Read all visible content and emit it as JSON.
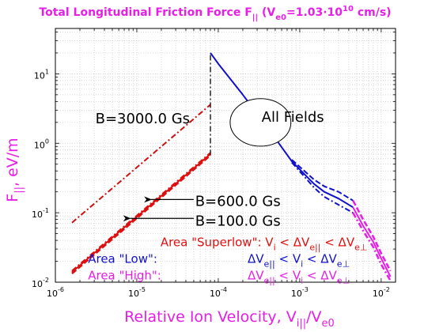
{
  "chart_data": {
    "type": "line",
    "title_main": "Total Longitudinal Friction Force F",
    "title_sub": "||",
    "title_paren": " (V",
    "title_psub": "e0",
    "title_eq": "=1.03·10",
    "title_sup": "10",
    "title_unit": " cm/s)",
    "xlabel_main": "Relative Ion Velocity, V",
    "xlabel_sub": "i||",
    "xlabel_slash": "/V",
    "xlabel_sub2": "e0",
    "ylabel_main": "F",
    "ylabel_sub": "||",
    "ylabel_unit": ", eV/m",
    "x_scale": "log",
    "y_scale": "log",
    "xlim": [
      1e-06,
      0.015
    ],
    "ylim": [
      0.01,
      45
    ],
    "grid": true,
    "x_ticks": [
      {
        "base": "10",
        "exp": "-6",
        "value": 1e-06
      },
      {
        "base": "10",
        "exp": "-5",
        "value": 1e-05
      },
      {
        "base": "10",
        "exp": "-4",
        "value": 0.0001
      },
      {
        "base": "10",
        "exp": "-3",
        "value": 0.001
      },
      {
        "base": "10",
        "exp": "-2",
        "value": 0.01
      }
    ],
    "y_ticks": [
      {
        "base": "10",
        "exp": "-2",
        "value": 0.01
      },
      {
        "base": "10",
        "exp": "-1",
        "value": 0.1
      },
      {
        "base": "10",
        "exp": "0",
        "value": 1
      },
      {
        "base": "10",
        "exp": "1",
        "value": 10
      }
    ],
    "series": [
      {
        "color": "#cc1010",
        "dash": "7,3,2,3",
        "width": 2,
        "x": [
          1.6e-06,
          8e-05
        ],
        "y": [
          0.072,
          3.6
        ]
      },
      {
        "color": "#dd1010",
        "dash": "7,3",
        "width": 2.5,
        "x": [
          1.6e-06,
          8e-05
        ],
        "y": [
          0.0133,
          0.67
        ]
      },
      {
        "color": "#dd1010",
        "dash": "",
        "width": 2,
        "x": [
          1.6e-06,
          8e-05
        ],
        "y": [
          0.014,
          0.7
        ]
      },
      {
        "color": "#dd1010",
        "dash": "7,3,2,3",
        "width": 2,
        "x": [
          1.6e-06,
          8e-05
        ],
        "y": [
          0.0146,
          0.73
        ]
      },
      {
        "color": "#000000",
        "dash": "7,3,2,3",
        "width": 1.3,
        "x": [
          8e-05,
          8e-05
        ],
        "y": [
          0.67,
          20
        ]
      },
      {
        "color": "#1010cc",
        "dash": "",
        "width": 2,
        "x": [
          8e-05,
          0.0001,
          0.0002,
          0.0004,
          0.0008,
          0.0015,
          0.002,
          0.003,
          0.0045
        ],
        "y": [
          20,
          14,
          5,
          1.7,
          0.55,
          0.26,
          0.2,
          0.16,
          0.12
        ]
      },
      {
        "color": "#1010cc",
        "dash": "7,3",
        "width": 2,
        "x": [
          0.0008,
          0.0015,
          0.002,
          0.003,
          0.0045
        ],
        "y": [
          0.58,
          0.3,
          0.24,
          0.2,
          0.15
        ]
      },
      {
        "color": "#1010cc",
        "dash": "7,3,2,3",
        "width": 2,
        "x": [
          0.0008,
          0.0015,
          0.002,
          0.003,
          0.0045
        ],
        "y": [
          0.53,
          0.23,
          0.17,
          0.13,
          0.1
        ]
      },
      {
        "color": "#e61ee6",
        "dash": "",
        "width": 2,
        "x": [
          0.0045,
          0.006,
          0.008,
          0.01,
          0.013
        ],
        "y": [
          0.12,
          0.065,
          0.038,
          0.022,
          0.012
        ]
      },
      {
        "color": "#e61ee6",
        "dash": "7,3",
        "width": 2.5,
        "x": [
          0.0045,
          0.006,
          0.008,
          0.01,
          0.013
        ],
        "y": [
          0.15,
          0.08,
          0.045,
          0.026,
          0.0145
        ]
      },
      {
        "color": "#e61ee6",
        "dash": "7,3,2,3",
        "width": 2.5,
        "x": [
          0.0045,
          0.006,
          0.008,
          0.01,
          0.013
        ],
        "y": [
          0.1,
          0.055,
          0.032,
          0.018,
          0.0105
        ]
      }
    ],
    "annotations": {
      "b3000": {
        "text": "B=3000.0 Gs",
        "x": 3.1e-06,
        "y": 1.95
      },
      "all_fields": {
        "text": "All  Fields",
        "x": 0.00034,
        "y": 2.05
      },
      "ellipse": {
        "x": 0.00033,
        "y": 2.0,
        "x_left": 0.00014,
        "x_right": 0.00078,
        "y_top": 4.6,
        "y_bottom": 0.95
      },
      "b600": {
        "text": "B=600.0 Gs",
        "x": 5.2e-05,
        "y": 0.125,
        "arrow_from_x": 5e-05,
        "arrow_to_x": 1.5e-05,
        "arrow_y": 0.155
      },
      "b100": {
        "text": "B=100.0 Gs",
        "x": 5.2e-05,
        "y": 0.065,
        "arrow_from_x": 5e-05,
        "arrow_to_x": 8.3e-06,
        "arrow_y": 0.083
      }
    },
    "legend": [
      {
        "text": "Area \"Superlow\": V",
        "color": "#e01010",
        "x": 1.95e-05,
        "y": 0.033
      },
      {
        "text": "Area \"Low\":",
        "color": "#1010cc",
        "x": 2.3e-06,
        "y": 0.019
      },
      {
        "text": "Area \"High\":",
        "color": "#e61ee6",
        "x": 2.3e-06,
        "y": 0.011
      }
    ],
    "legend_formulas": {
      "superlow": {
        "v": "V",
        "vi_sub": "i",
        "lt1": " < ΔV",
        "sub1": "e||",
        "lt2": " < ΔV",
        "sub2": "e⊥",
        "color": "#e01010"
      },
      "low": {
        "d": "ΔV",
        "sub1": "e||",
        "lt1": " < V",
        "sub2": "i",
        "lt2": " < ΔV",
        "sub3": "e⊥",
        "color": "#1010cc"
      },
      "high": {
        "d": "ΔV",
        "sub1": "e||",
        "lt1": " < V",
        "sub2": "i",
        "lt2": " < ΔV",
        "sub3": "e⊥",
        "color": "#e61ee6"
      }
    }
  }
}
